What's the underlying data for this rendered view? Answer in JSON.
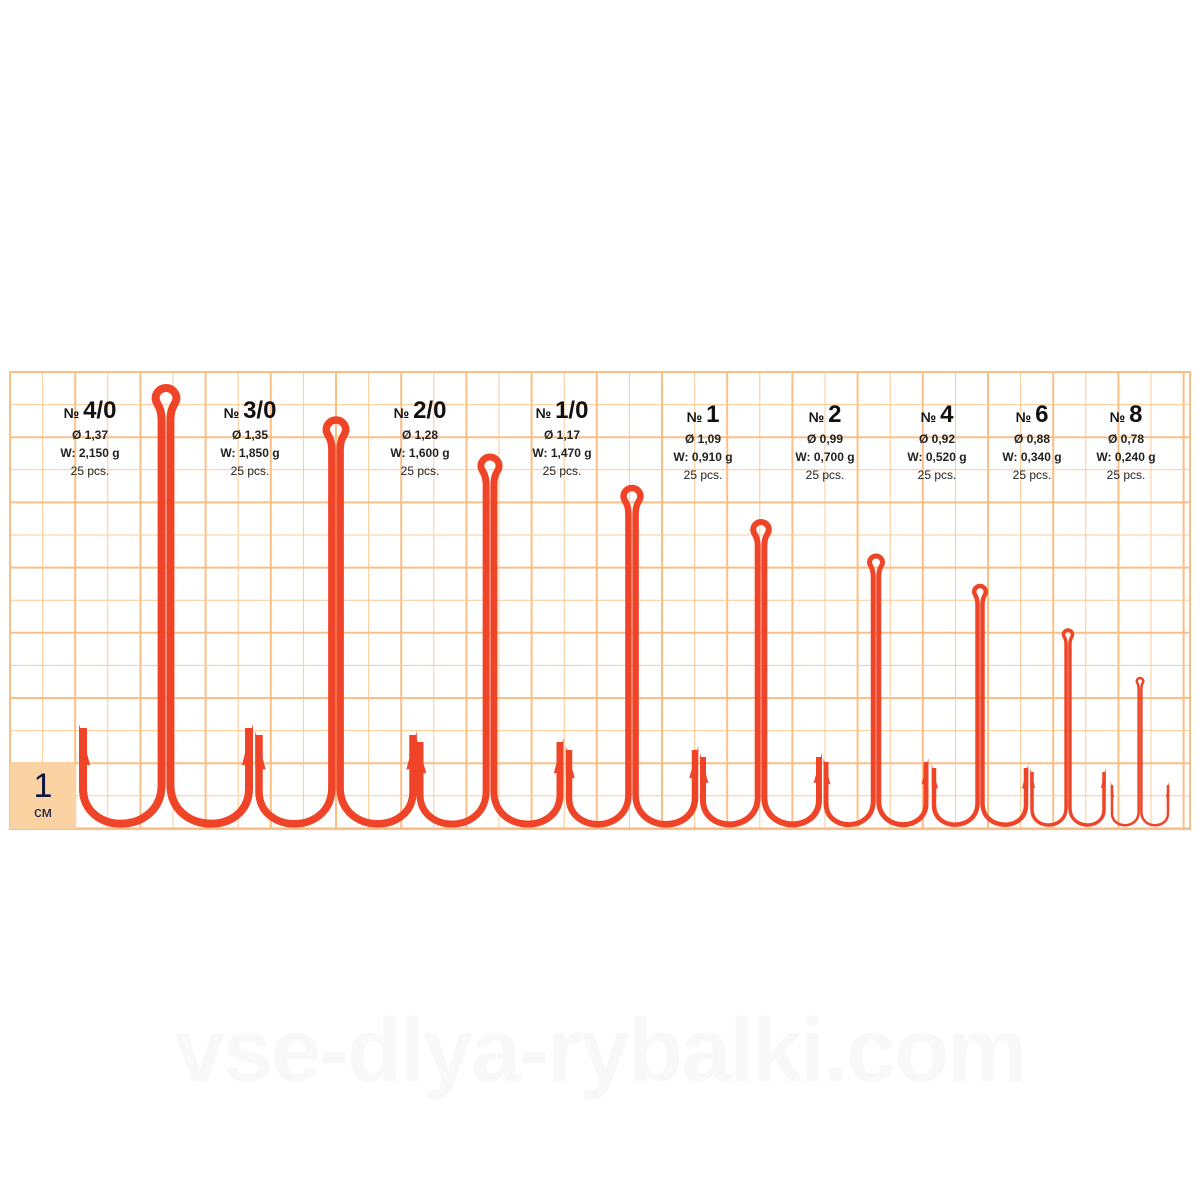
{
  "colors": {
    "grid": "#fdc995",
    "grid_major": "#fbbf86",
    "hook": "#ef4427",
    "scale_box": "#fbd3a3"
  },
  "scale": {
    "value": "1",
    "unit": "см"
  },
  "watermark": "vse-dlya-rybalki.com",
  "hooks": [
    {
      "prefix": "№",
      "size": "4/0",
      "diameter": "Ø 1,37",
      "weight": "W: 2,150 g",
      "count": "25 pcs."
    },
    {
      "prefix": "№",
      "size": "3/0",
      "diameter": "Ø 1,35",
      "weight": "W: 1,850 g",
      "count": "25 pcs."
    },
    {
      "prefix": "№",
      "size": "2/0",
      "diameter": "Ø 1,28",
      "weight": "W: 1,600 g",
      "count": "25 pcs."
    },
    {
      "prefix": "№",
      "size": "1/0",
      "diameter": "Ø 1,17",
      "weight": "W: 1,470 g",
      "count": "25 pcs."
    },
    {
      "prefix": "№",
      "size": "1",
      "diameter": "Ø 1,09",
      "weight": "W: 0,910 g",
      "count": "25 pcs."
    },
    {
      "prefix": "№",
      "size": "2",
      "diameter": "Ø 0,99",
      "weight": "W: 0,700 g",
      "count": "25 pcs."
    },
    {
      "prefix": "№",
      "size": "4",
      "diameter": "Ø 0,92",
      "weight": "W: 0,520 g",
      "count": "25 pcs."
    },
    {
      "prefix": "№",
      "size": "6",
      "diameter": "Ø 0,88",
      "weight": "W: 0,340 g",
      "count": "25 pcs."
    },
    {
      "prefix": "№",
      "size": "8",
      "diameter": "Ø 0,78",
      "weight": "W: 0,240 g",
      "count": "25 pcs."
    }
  ]
}
